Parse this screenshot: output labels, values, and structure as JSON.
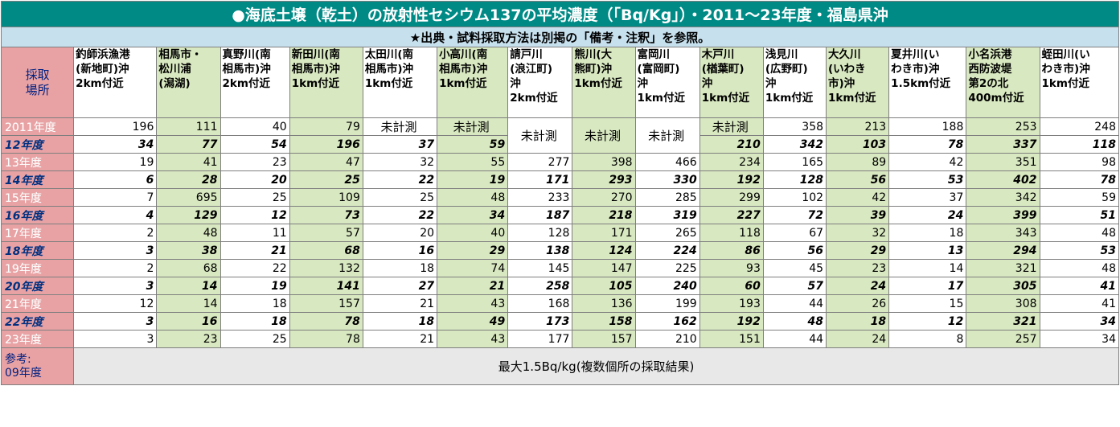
{
  "title": "●海底土壌（乾土）の放射性セシウム137の平均濃度（「Bq/Kg」）・2011～23年度・福島県沖",
  "subtitle": "★出典・試料採取方法は別掲の「備考・注釈」を参照。",
  "corner_label": [
    "採取",
    "場所"
  ],
  "columns": [
    {
      "lines": [
        "釣師浜漁港",
        "(新地町)沖",
        "2km付近"
      ]
    },
    {
      "lines": [
        "相馬市・",
        "松川浦",
        "(潟湖)"
      ]
    },
    {
      "lines": [
        "真野川(南",
        "相馬市)沖",
        "2km付近"
      ]
    },
    {
      "lines": [
        "新田川(南",
        "相馬市)沖",
        "1km付近"
      ]
    },
    {
      "lines": [
        "太田川(南",
        "相馬市)沖",
        "1km付近"
      ]
    },
    {
      "lines": [
        "小高川(南",
        "相馬市)沖",
        "1km付近"
      ]
    },
    {
      "lines": [
        "請戸川",
        "(浪江町)",
        "沖",
        "2km付近"
      ]
    },
    {
      "lines": [
        "熊川(大",
        "熊町)沖",
        "1km付近"
      ]
    },
    {
      "lines": [
        "富岡川",
        "(富岡町)",
        "沖",
        "1km付近"
      ]
    },
    {
      "lines": [
        "木戸川",
        "(楢葉町)",
        "沖",
        "1km付近"
      ]
    },
    {
      "lines": [
        "浅見川",
        "(広野町)",
        "沖",
        "1km付近"
      ]
    },
    {
      "lines": [
        "大久川",
        "(いわき",
        "市)沖",
        "1km付近"
      ]
    },
    {
      "lines": [
        "夏井川(い",
        "わき市)沖",
        "1.5km付近"
      ]
    },
    {
      "lines": [
        "小名浜港",
        "西防波堤",
        "第2の北",
        "400m付近"
      ]
    },
    {
      "lines": [
        "蛭田川(い",
        "わき市)沖",
        "1km付近"
      ]
    }
  ],
  "rows": [
    {
      "label": "2011年度",
      "values": [
        "196",
        "111",
        "40",
        "79",
        "未計測",
        "未計測",
        "未計測",
        "未計測",
        "未計測",
        "未計測",
        "358",
        "213",
        "188",
        "253",
        "248"
      ]
    },
    {
      "label": "12年度",
      "values": [
        "34",
        "77",
        "54",
        "196",
        "37",
        "59",
        "",
        "",
        "",
        "210",
        "342",
        "103",
        "78",
        "337",
        "118"
      ]
    },
    {
      "label": "13年度",
      "values": [
        "19",
        "41",
        "23",
        "47",
        "32",
        "55",
        "277",
        "398",
        "466",
        "234",
        "165",
        "89",
        "42",
        "351",
        "98"
      ]
    },
    {
      "label": "14年度",
      "values": [
        "6",
        "28",
        "20",
        "25",
        "22",
        "19",
        "171",
        "293",
        "330",
        "192",
        "128",
        "56",
        "53",
        "402",
        "78"
      ]
    },
    {
      "label": "15年度",
      "values": [
        "7",
        "695",
        "25",
        "109",
        "25",
        "48",
        "233",
        "270",
        "285",
        "299",
        "102",
        "42",
        "37",
        "342",
        "59"
      ]
    },
    {
      "label": "16年度",
      "values": [
        "4",
        "129",
        "12",
        "73",
        "22",
        "34",
        "187",
        "218",
        "319",
        "227",
        "72",
        "39",
        "24",
        "399",
        "51"
      ]
    },
    {
      "label": "17年度",
      "values": [
        "2",
        "48",
        "11",
        "57",
        "20",
        "40",
        "128",
        "171",
        "265",
        "118",
        "67",
        "32",
        "18",
        "343",
        "48"
      ]
    },
    {
      "label": "18年度",
      "values": [
        "3",
        "38",
        "21",
        "68",
        "16",
        "29",
        "138",
        "124",
        "224",
        "86",
        "56",
        "29",
        "13",
        "294",
        "53"
      ]
    },
    {
      "label": "19年度",
      "values": [
        "2",
        "68",
        "22",
        "132",
        "18",
        "74",
        "145",
        "147",
        "225",
        "93",
        "45",
        "23",
        "14",
        "321",
        "48"
      ]
    },
    {
      "label": "20年度",
      "values": [
        "3",
        "14",
        "19",
        "141",
        "27",
        "21",
        "258",
        "105",
        "240",
        "60",
        "57",
        "24",
        "17",
        "305",
        "41"
      ]
    },
    {
      "label": "21年度",
      "values": [
        "12",
        "14",
        "18",
        "157",
        "21",
        "43",
        "168",
        "136",
        "199",
        "193",
        "44",
        "26",
        "15",
        "308",
        "41"
      ]
    },
    {
      "label": "22年度",
      "values": [
        "3",
        "16",
        "18",
        "78",
        "18",
        "49",
        "173",
        "158",
        "162",
        "192",
        "48",
        "18",
        "12",
        "321",
        "34"
      ]
    },
    {
      "label": "23年度",
      "values": [
        "3",
        "23",
        "25",
        "78",
        "21",
        "43",
        "177",
        "157",
        "210",
        "151",
        "44",
        "24",
        "8",
        "257",
        "34"
      ]
    }
  ],
  "reference": {
    "label": [
      "参考:",
      "09年度"
    ],
    "text": "最大1.5Bq/kg(複数個所の採取結果)"
  }
}
